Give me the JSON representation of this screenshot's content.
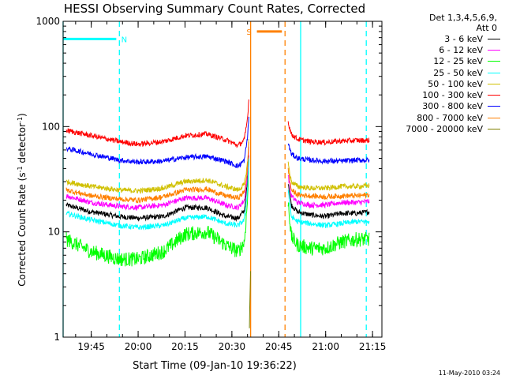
{
  "chart_data": {
    "type": "line",
    "title": "HESSI Observing Summary Count Rates, Corrected",
    "xlabel": "Start Time (09-Jan-10 19:36:22)",
    "ylabel_main": "Corrected Count Rate (s",
    "ylabel_sup1": "-1",
    "ylabel_mid": " detector",
    "ylabel_sup2": "-1",
    "ylabel_end": ")",
    "y_scale": "log",
    "ylim": [
      1,
      1000
    ],
    "xlim": [
      "19:36",
      "21:18"
    ],
    "x_ticks": [
      "19:45",
      "20:00",
      "20:15",
      "20:30",
      "20:45",
      "21:00",
      "21:15"
    ],
    "y_ticks": [
      "1",
      "10",
      "100",
      "1000"
    ],
    "grid": false,
    "legend_position": "outside-right",
    "legend_header": [
      "Det 1,3,4,5,6,9,",
      "Att 0"
    ],
    "flags": [
      {
        "label": "N",
        "color": "#00ffff",
        "bar_x": [
          "19:36",
          "19:53"
        ],
        "bar_y": 680,
        "solid_lines": [
          "19:36",
          "20:52"
        ],
        "dashed_lines": [
          "19:54",
          "21:13"
        ]
      },
      {
        "label": "S",
        "color": "#ff8000",
        "bar_x": [
          "20:38",
          "20:46"
        ],
        "bar_y": 800,
        "solid_lines": [
          "20:36"
        ],
        "dashed_lines": [
          "20:47"
        ]
      }
    ],
    "series": [
      {
        "name": "3 - 6 keV",
        "color": "#000000",
        "segments": [
          {
            "x": [
              "19:37",
              "19:45",
              "19:54",
              "20:00",
              "20:08",
              "20:15",
              "20:22",
              "20:28",
              "20:32",
              "20:34",
              "20:35",
              "20:35.5"
            ],
            "y": [
              18,
              15.5,
              14,
              13.5,
              14,
              17,
              17,
              14,
              13.5,
              16,
              30,
              60
            ]
          },
          {
            "x": [
              "20:48",
              "20:49",
              "20:51",
              "20:55",
              "21:00",
              "21:05",
              "21:10",
              "21:14"
            ],
            "y": [
              30,
              18,
              15.5,
              14.5,
              14,
              15,
              15,
              15.5
            ]
          }
        ]
      },
      {
        "name": "6 - 12 keV",
        "color": "#ff00ff",
        "segments": [
          {
            "x": [
              "19:37",
              "19:45",
              "19:54",
              "20:00",
              "20:08",
              "20:15",
              "20:22",
              "20:28",
              "20:32",
              "20:34",
              "20:35",
              "20:35.5"
            ],
            "y": [
              22,
              19,
              17.5,
              17,
              18,
              21,
              21,
              18,
              17,
              20,
              35,
              70
            ]
          },
          {
            "x": [
              "20:48",
              "20:49",
              "20:51",
              "20:55",
              "21:00",
              "21:05",
              "21:10",
              "21:14"
            ],
            "y": [
              35,
              22,
              19,
              18,
              18,
              19,
              19,
              19.5
            ]
          }
        ]
      },
      {
        "name": "12 - 25 keV",
        "color": "#00ff00",
        "segments": [
          {
            "x": [
              "19:37",
              "19:45",
              "19:54",
              "20:00",
              "20:08",
              "20:15",
              "20:22",
              "20:28",
              "20:32",
              "20:34",
              "20:35",
              "20:35.5"
            ],
            "y": [
              8.5,
              6.5,
              5.5,
              5.5,
              6.5,
              9.5,
              10,
              7.5,
              6.5,
              8,
              20,
              50
            ]
          },
          {
            "x": [
              "20:48",
              "20:49",
              "20:51",
              "20:55",
              "21:00",
              "21:05",
              "21:10",
              "21:14"
            ],
            "y": [
              20,
              9,
              7.5,
              7,
              7,
              8,
              8.5,
              8.5
            ]
          }
        ]
      },
      {
        "name": "25 - 50 keV",
        "color": "#00ffff",
        "segments": [
          {
            "x": [
              "19:37",
              "19:45",
              "19:54",
              "20:00",
              "20:08",
              "20:15",
              "20:22",
              "20:28",
              "20:32",
              "20:34",
              "20:35",
              "20:35.5"
            ],
            "y": [
              15,
              13,
              11.5,
              11,
              11.5,
              13.5,
              14,
              12,
              11.5,
              13,
              25,
              55
            ]
          },
          {
            "x": [
              "20:48",
              "20:49",
              "20:51",
              "20:55",
              "21:00",
              "21:05",
              "21:10",
              "21:14"
            ],
            "y": [
              25,
              14,
              12.5,
              12,
              11.5,
              12,
              12.5,
              12.5
            ]
          }
        ]
      },
      {
        "name": "50 - 100 keV",
        "color": "#d0c000",
        "segments": [
          {
            "x": [
              "19:37",
              "19:45",
              "19:54",
              "20:00",
              "20:08",
              "20:15",
              "20:22",
              "20:28",
              "20:32",
              "20:34",
              "20:35",
              "20:35.5"
            ],
            "y": [
              30,
              27,
              25,
              24.5,
              26,
              30,
              31,
              27,
              25,
              28,
              45,
              80
            ]
          },
          {
            "x": [
              "20:48",
              "20:49",
              "20:51",
              "20:55",
              "21:00",
              "21:05",
              "21:10",
              "21:14"
            ],
            "y": [
              45,
              30,
              27,
              26,
              26,
              27,
              27,
              27.5
            ]
          }
        ]
      },
      {
        "name": "100 - 300 keV",
        "color": "#ff0000",
        "segments": [
          {
            "x": [
              "19:37",
              "19:45",
              "19:54",
              "20:00",
              "20:08",
              "20:15",
              "20:22",
              "20:28",
              "20:32",
              "20:34",
              "20:35",
              "20:35.5"
            ],
            "y": [
              92,
              82,
              72,
              68,
              72,
              82,
              85,
              75,
              66,
              75,
              120,
              200
            ]
          },
          {
            "x": [
              "20:48",
              "20:49",
              "20:51",
              "20:55",
              "21:00",
              "21:05",
              "21:10",
              "21:14"
            ],
            "y": [
              110,
              85,
              76,
              72,
              71,
              73,
              74,
              74
            ]
          }
        ]
      },
      {
        "name": "300 - 800 keV",
        "color": "#0000ff",
        "segments": [
          {
            "x": [
              "19:37",
              "19:45",
              "19:54",
              "20:00",
              "20:08",
              "20:15",
              "20:22",
              "20:28",
              "20:32",
              "20:34",
              "20:35",
              "20:35.5"
            ],
            "y": [
              62,
              55,
              48,
              46,
              47,
              51,
              52,
              47,
              42,
              48,
              80,
              130
            ]
          },
          {
            "x": [
              "20:48",
              "20:49",
              "20:51",
              "20:55",
              "21:00",
              "21:05",
              "21:10",
              "21:14"
            ],
            "y": [
              70,
              55,
              50,
              48,
              47,
              47,
              48,
              48
            ]
          }
        ]
      },
      {
        "name": "800 - 7000 keV",
        "color": "#ff8000",
        "segments": [
          {
            "x": [
              "19:37",
              "19:45",
              "19:54",
              "20:00",
              "20:08",
              "20:15",
              "20:22",
              "20:28",
              "20:32",
              "20:34",
              "20:35",
              "20:35.5"
            ],
            "y": [
              25,
              22,
              20.5,
              20,
              21.5,
              25,
              25.5,
              22,
              21,
              24,
              40,
              75
            ]
          },
          {
            "x": [
              "20:48",
              "20:49",
              "20:51",
              "20:55",
              "21:00",
              "21:05",
              "21:10",
              "21:14"
            ],
            "y": [
              40,
              25,
              22.5,
              22,
              21.5,
              22,
              22,
              22.5
            ]
          }
        ]
      },
      {
        "name": "7000 - 20000 keV",
        "color": "#808000",
        "segments": [
          {
            "x": [
              "20:35.6",
              "20:35.8",
              "20:36"
            ],
            "y": [
              1.2,
              2.5,
              4.5
            ]
          }
        ]
      }
    ]
  },
  "footer_date": "11-May-2010 03:24"
}
